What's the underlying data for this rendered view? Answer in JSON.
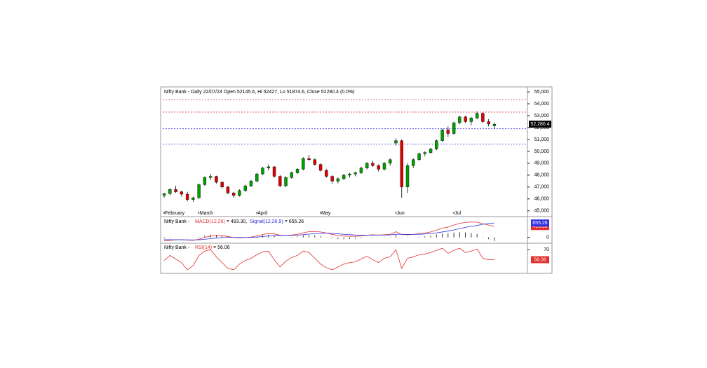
{
  "chart_data": [
    {
      "type": "candlestick",
      "title": "Nifty Bank - Daily 22/07/24 Open 52145.6, Hi 52427, Lo 51874.6, Close 52280.4 (0.0%)",
      "up_color": "#00a000",
      "down_color": "#e00000",
      "candles": [
        [
          46300,
          46500,
          46100,
          46450
        ],
        [
          46450,
          46900,
          46300,
          46800
        ],
        [
          46800,
          47100,
          46500,
          46600
        ],
        [
          46600,
          46700,
          46200,
          46400
        ],
        [
          46400,
          46600,
          45800,
          45950
        ],
        [
          45950,
          46200,
          45750,
          46100
        ],
        [
          46100,
          47300,
          46000,
          47200
        ],
        [
          47200,
          47900,
          47100,
          47800
        ],
        [
          47800,
          48100,
          47600,
          47900
        ],
        [
          47900,
          47950,
          47300,
          47400
        ],
        [
          47400,
          47500,
          46900,
          47000
        ],
        [
          47000,
          47100,
          46400,
          46500
        ],
        [
          46500,
          46600,
          46100,
          46300
        ],
        [
          46300,
          46800,
          46200,
          46700
        ],
        [
          46700,
          47200,
          46600,
          47100
        ],
        [
          47100,
          47600,
          47000,
          47500
        ],
        [
          47500,
          48200,
          47400,
          48100
        ],
        [
          48100,
          48700,
          48000,
          48600
        ],
        [
          48600,
          48900,
          48400,
          48700
        ],
        [
          48700,
          48750,
          47800,
          47900
        ],
        [
          47900,
          48000,
          47000,
          47100
        ],
        [
          47100,
          47900,
          47000,
          47800
        ],
        [
          47800,
          48300,
          47700,
          48200
        ],
        [
          48200,
          48600,
          48100,
          48500
        ],
        [
          48500,
          49500,
          48400,
          49400
        ],
        [
          49400,
          49700,
          49200,
          49300
        ],
        [
          49300,
          49400,
          48800,
          48900
        ],
        [
          48900,
          49000,
          48300,
          48400
        ],
        [
          48400,
          48500,
          47800,
          47900
        ],
        [
          47900,
          48000,
          47300,
          47500
        ],
        [
          47500,
          47800,
          47300,
          47700
        ],
        [
          47700,
          48100,
          47600,
          48000
        ],
        [
          48000,
          48200,
          47800,
          48100
        ],
        [
          48100,
          48300,
          47900,
          48200
        ],
        [
          48200,
          48700,
          48100,
          48600
        ],
        [
          48600,
          49100,
          48500,
          49000
        ],
        [
          49000,
          49200,
          48700,
          48800
        ],
        [
          48800,
          48900,
          48300,
          48500
        ],
        [
          48500,
          49100,
          48400,
          49000
        ],
        [
          49000,
          49400,
          48800,
          49300
        ],
        [
          50700,
          51100,
          50500,
          50900
        ],
        [
          50900,
          51000,
          46100,
          47000
        ],
        [
          47000,
          49000,
          46500,
          48800
        ],
        [
          48800,
          49400,
          48600,
          49300
        ],
        [
          49300,
          49900,
          49200,
          49800
        ],
        [
          49800,
          50000,
          49600,
          49900
        ],
        [
          49900,
          50300,
          49800,
          50200
        ],
        [
          50200,
          51000,
          50100,
          50900
        ],
        [
          50900,
          51900,
          50800,
          51800
        ],
        [
          51800,
          52100,
          51200,
          51500
        ],
        [
          51500,
          52500,
          51400,
          52400
        ],
        [
          52400,
          53000,
          52300,
          52900
        ],
        [
          52900,
          53000,
          52400,
          52500
        ],
        [
          52500,
          52900,
          52200,
          52800
        ],
        [
          52800,
          53350,
          52700,
          53200
        ],
        [
          53200,
          53300,
          52400,
          52500
        ],
        [
          52500,
          52700,
          52100,
          52300
        ],
        [
          52145.6,
          52427,
          51874.6,
          52280.4
        ]
      ],
      "levels": [
        {
          "value": 54350,
          "color": "#e03030"
        },
        {
          "value": 53300,
          "color": "#e03030"
        },
        {
          "value": 51900,
          "color": "#3030e0"
        },
        {
          "value": 50600,
          "color": "#3030e0"
        }
      ],
      "last_label": "52,280.4",
      "xlim": [
        -0.25,
        62.7
      ],
      "xticks": [
        {
          "value": 0,
          "label": "February"
        },
        {
          "value": 6,
          "label": "March"
        },
        {
          "value": 16,
          "label": "April"
        },
        {
          "value": 27,
          "label": "May"
        },
        {
          "value": 40,
          "label": "Jun"
        },
        {
          "value": 50,
          "label": "Jul"
        }
      ],
      "ylim": [
        44750,
        55300
      ],
      "yticks": [
        {
          "value": 45000,
          "label": "45,000"
        },
        {
          "value": 46000,
          "label": "46,000"
        },
        {
          "value": 47000,
          "label": "47,000"
        },
        {
          "value": 48000,
          "label": "48,000"
        },
        {
          "value": 49000,
          "label": "49,000"
        },
        {
          "value": 50000,
          "label": "50,000"
        },
        {
          "value": 51000,
          "label": "51,000"
        },
        {
          "value": 52000,
          "label": "52,000"
        },
        {
          "value": 53000,
          "label": "53,000"
        },
        {
          "value": 54000,
          "label": "54,000"
        },
        {
          "value": 55000,
          "label": "55,000"
        }
      ]
    },
    {
      "type": "line",
      "prefix": "Nifty Bank -",
      "series": [
        {
          "name": "MACD(12,26)",
          "readout": "= 493.30,",
          "last_label": "493.30",
          "color": "#e03030",
          "values": [
            -150,
            -130,
            -110,
            -100,
            -120,
            -130,
            -80,
            0,
            60,
            90,
            80,
            40,
            0,
            -20,
            -10,
            20,
            70,
            130,
            180,
            160,
            100,
            90,
            110,
            140,
            210,
            260,
            270,
            250,
            200,
            140,
            90,
            60,
            50,
            50,
            70,
            100,
            120,
            110,
            120,
            140,
            260,
            130,
            120,
            140,
            170,
            200,
            250,
            330,
            420,
            470,
            560,
            640,
            680,
            700,
            690,
            620,
            560,
            493.3
          ]
        },
        {
          "name": "Signal(12,26,9)",
          "readout": "= 655.26",
          "last_label": "655.26",
          "color": "#3030e0",
          "values": [
            -100,
            -106,
            -107,
            -106,
            -108,
            -113,
            -106,
            -85,
            -56,
            -27,
            -6,
            3,
            2,
            -3,
            -4,
            1,
            15,
            38,
            66,
            85,
            88,
            88,
            92,
            102,
            124,
            151,
            175,
            190,
            192,
            182,
            164,
            143,
            124,
            109,
            101,
            101,
            105,
            106,
            109,
            115,
            144,
            141,
            137,
            137,
            143,
            154,
            173,
            204,
            247,
            291,
            340,
            400,
            456,
            505,
            542,
            600,
            635,
            655.26
          ]
        }
      ],
      "histogram": {
        "color": "#000000",
        "values": [
          -50,
          -24,
          -3,
          6,
          -12,
          -17,
          26,
          85,
          116,
          117,
          86,
          37,
          -2,
          -17,
          -6,
          19,
          55,
          92,
          114,
          75,
          12,
          2,
          18,
          38,
          86,
          109,
          95,
          60,
          8,
          -42,
          -74,
          -83,
          -74,
          -59,
          -31,
          -1,
          15,
          4,
          11,
          25,
          116,
          -11,
          -17,
          3,
          27,
          46,
          77,
          126,
          173,
          179,
          220,
          240,
          224,
          195,
          148,
          20,
          -75,
          -161.96
        ]
      },
      "xlim": [
        -0.25,
        62.7
      ],
      "ylim": [
        -200,
        850
      ],
      "yticks": [
        0
      ]
    },
    {
      "type": "line",
      "prefix": "Nifty Bank -",
      "series": [
        {
          "name": "RSI(14)",
          "readout": "= 56.06",
          "last_label": "56.06",
          "color": "#e03030",
          "values": [
            55,
            62,
            57,
            52,
            42,
            48,
            62,
            68,
            70,
            60,
            52,
            44,
            42,
            50,
            55,
            58,
            63,
            67,
            68,
            56,
            46,
            54,
            59,
            62,
            68,
            66,
            58,
            50,
            45,
            42,
            46,
            50,
            52,
            53,
            57,
            61,
            56,
            52,
            58,
            60,
            70,
            44,
            58,
            60,
            63,
            64,
            66,
            69,
            72,
            65,
            69,
            72,
            66,
            68,
            71,
            58,
            56,
            56.06
          ]
        }
      ],
      "xlim": [
        -0.25,
        62.7
      ],
      "ylim": [
        38,
        77
      ],
      "yticks": [
        70
      ]
    }
  ]
}
